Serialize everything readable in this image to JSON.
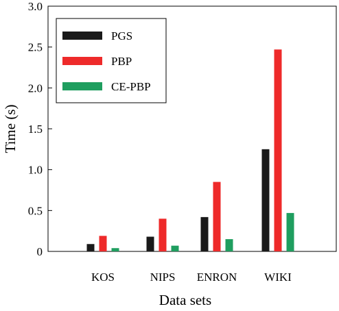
{
  "chart_data": {
    "type": "bar",
    "categories": [
      "KOS",
      "NIPS",
      "ENRON",
      "WIKI"
    ],
    "series": [
      {
        "name": "PGS",
        "color": "#1a1a1a",
        "values": [
          0.09,
          0.18,
          0.42,
          1.25
        ]
      },
      {
        "name": "PBP",
        "color": "#ee2a2a",
        "values": [
          0.19,
          0.4,
          0.85,
          2.47
        ]
      },
      {
        "name": "CE-PBP",
        "color": "#1f9e5f",
        "values": [
          0.04,
          0.07,
          0.15,
          0.47
        ]
      }
    ],
    "xlabel": "Data sets",
    "ylabel": "Time (s)",
    "ylim": [
      0,
      3.0
    ],
    "yticks": [
      "0",
      "0.5",
      "1.0",
      "1.5",
      "2.0",
      "2.5",
      "3.0"
    ],
    "legend_position": "top-left",
    "grid": false
  }
}
